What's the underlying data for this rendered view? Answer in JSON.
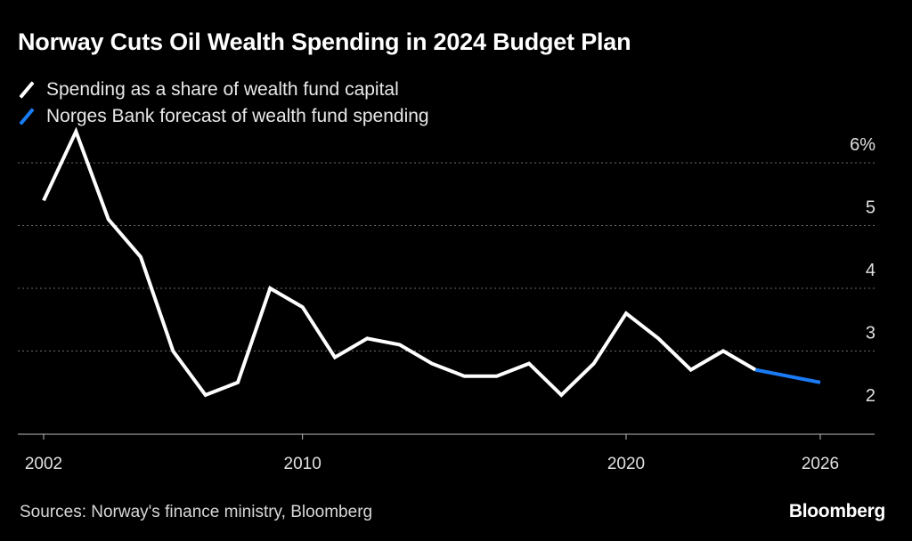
{
  "header": {
    "title": "Norway Cuts Oil Wealth Spending in 2024 Budget Plan"
  },
  "legend": [
    {
      "label": "Spending as a share of wealth fund capital",
      "color": "#ffffff"
    },
    {
      "label": "Norges Bank forecast of wealth fund spending",
      "color": "#1a7cf5"
    }
  ],
  "footer": {
    "source": "Sources: Norway's finance ministry, Bloomberg",
    "brand": "Bloomberg"
  },
  "chart_data": {
    "type": "line",
    "title": "Norway Cuts Oil Wealth Spending in 2024 Budget Plan",
    "xlabel": "",
    "ylabel": "",
    "x_ticks": [
      "2002",
      "2010",
      "2020",
      "2026"
    ],
    "y_ticks": [
      "6%",
      "5",
      "4",
      "3",
      "2"
    ],
    "ylim": [
      1.7,
      6.5
    ],
    "xlim": [
      2001.9,
      2027
    ],
    "series": [
      {
        "name": "Spending as a share of wealth fund capital",
        "color": "#ffffff",
        "x": [
          2002,
          2003,
          2004,
          2005,
          2006,
          2007,
          2008,
          2009,
          2010,
          2011,
          2012,
          2013,
          2014,
          2015,
          2016,
          2017,
          2018,
          2019,
          2020,
          2021,
          2022,
          2023,
          2024
        ],
        "values": [
          5.4,
          6.5,
          5.1,
          4.5,
          3.0,
          2.3,
          2.5,
          4.0,
          3.7,
          2.9,
          3.2,
          3.1,
          2.8,
          2.6,
          2.6,
          2.8,
          2.3,
          2.8,
          3.6,
          3.2,
          2.7,
          3.0,
          2.7
        ]
      },
      {
        "name": "Norges Bank forecast of wealth fund spending",
        "color": "#1a7cf5",
        "x": [
          2024,
          2025,
          2026
        ],
        "values": [
          2.7,
          2.6,
          2.5
        ]
      }
    ]
  }
}
